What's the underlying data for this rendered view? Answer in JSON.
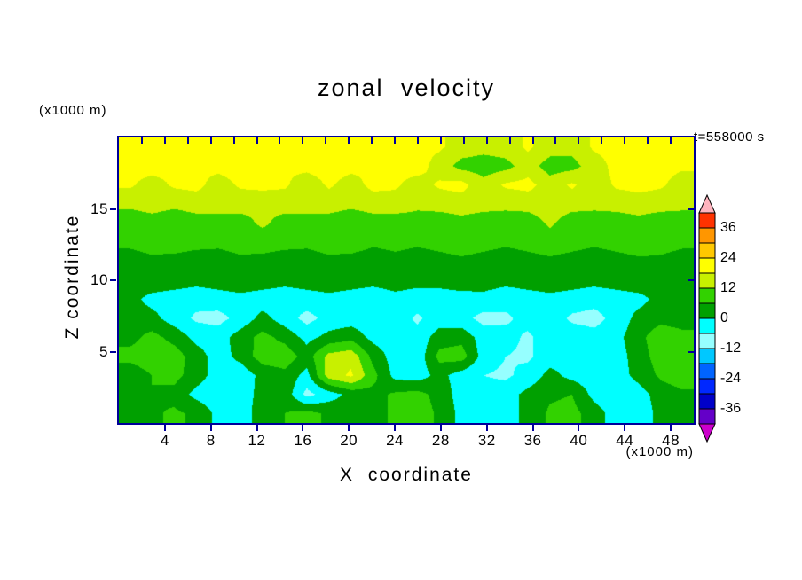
{
  "title": "zonal velocity",
  "timestamp_label": "t=558000 s",
  "axes": {
    "x_label": "X coordinate",
    "z_label": "Z coordinate",
    "x_unit": "(x1000 m)",
    "z_unit": "(x1000 m)",
    "x_ticks": [
      4,
      8,
      12,
      16,
      20,
      24,
      28,
      32,
      36,
      40,
      44,
      48
    ],
    "z_ticks": [
      5,
      10,
      15
    ],
    "frame_color": "#000099"
  },
  "colorbar": {
    "labels": [
      36,
      24,
      12,
      0,
      -12,
      -24,
      -36
    ],
    "label_interval": 12,
    "segment_interval": 6
  },
  "chart_data": {
    "type": "heatmap",
    "subtype": "filled-contour",
    "title": "zonal velocity",
    "xlabel": "X coordinate (x1000 m)",
    "ylabel": "Z coordinate (x1000 m)",
    "annotation": "t=558000 s",
    "xlim": [
      0,
      50
    ],
    "zlim": [
      0,
      20
    ],
    "contour_interval": 6,
    "levels": [
      -42,
      -36,
      -30,
      -24,
      -18,
      -12,
      -6,
      0,
      6,
      12,
      18,
      24,
      30,
      36,
      42
    ],
    "colors": [
      "#cc00cc",
      "#6400c8",
      "#0000c8",
      "#0028ff",
      "#0064ff",
      "#00c8ff",
      "#96ffff",
      "#00ffff",
      "#00a000",
      "#32d200",
      "#c8f000",
      "#ffff00",
      "#ffc800",
      "#ff9600",
      "#ff3200",
      "#ffb4be"
    ],
    "legend_position": "right",
    "grid_lines": false,
    "grid": {
      "nx": 26,
      "nz": 15,
      "order": "rows bottom-to-top, columns left-to-right",
      "values": [
        [
          4,
          5,
          7,
          5,
          -2,
          -3,
          3,
          6,
          8,
          5,
          3,
          2,
          8,
          9,
          5,
          -2,
          -4,
          -3,
          2,
          7,
          8,
          3,
          -3,
          -4,
          2,
          5
        ],
        [
          3,
          6,
          4,
          -2,
          -4,
          -3,
          2,
          4,
          -8,
          -3,
          2,
          4,
          7,
          8,
          4,
          -3,
          -4,
          -3,
          2,
          5,
          6,
          -2,
          -4,
          -3,
          3,
          5
        ],
        [
          2,
          6,
          8,
          3,
          -3,
          -4,
          2,
          4,
          -2,
          15,
          19,
          8,
          -2,
          -3,
          2,
          -3,
          -6,
          -7,
          -4,
          2,
          -2,
          -4,
          -3,
          2,
          7,
          9
        ],
        [
          8,
          10,
          9,
          3,
          -3,
          2,
          9,
          10,
          3,
          14,
          16,
          4,
          -3,
          -4,
          8,
          9,
          -3,
          -6,
          -7,
          -3,
          -2,
          -4,
          -3,
          3,
          9,
          11
        ],
        [
          4,
          8,
          4,
          -2,
          -3,
          3,
          8,
          4,
          -2,
          2,
          4,
          -2,
          -3,
          -4,
          3,
          4,
          -3,
          -4,
          -7,
          -3,
          -3,
          -4,
          -2,
          4,
          10,
          8
        ],
        [
          3,
          2,
          -3,
          -7,
          -8,
          -4,
          2,
          -3,
          -8,
          -4,
          -3,
          -4,
          -3,
          -7,
          -3,
          -4,
          -8,
          -7,
          -4,
          -3,
          -7,
          -8,
          -4,
          2,
          4,
          3
        ],
        [
          2,
          -2,
          -3,
          -4,
          -3,
          -2,
          -3,
          -4,
          -3,
          -2,
          -3,
          -4,
          -2,
          -3,
          -4,
          -3,
          -2,
          -4,
          -3,
          -2,
          -3,
          -4,
          -3,
          -2,
          2,
          3
        ],
        [
          3,
          4,
          3,
          2,
          3,
          4,
          3,
          2,
          3,
          4,
          3,
          2,
          3,
          2,
          3,
          4,
          3,
          2,
          3,
          4,
          3,
          2,
          3,
          4,
          4,
          3
        ],
        [
          4,
          5,
          4,
          3,
          4,
          5,
          4,
          3,
          4,
          5,
          4,
          3,
          4,
          3,
          4,
          5,
          4,
          3,
          4,
          5,
          4,
          3,
          4,
          5,
          5,
          4
        ],
        [
          7,
          8,
          9,
          8,
          7,
          8,
          9,
          8,
          7,
          8,
          9,
          7,
          8,
          7,
          8,
          9,
          8,
          7,
          8,
          9,
          8,
          7,
          8,
          9,
          8,
          7
        ],
        [
          9,
          10,
          9,
          10,
          9,
          10,
          13,
          10,
          9,
          10,
          9,
          10,
          9,
          10,
          9,
          10,
          9,
          10,
          9,
          13,
          9,
          10,
          9,
          10,
          9,
          10
        ],
        [
          13,
          14,
          13,
          14,
          15,
          14,
          13,
          14,
          15,
          14,
          13,
          14,
          15,
          13,
          14,
          15,
          14,
          13,
          14,
          15,
          14,
          13,
          14,
          15,
          14,
          13
        ],
        [
          19,
          15,
          19,
          20,
          15,
          19,
          20,
          19,
          14,
          19,
          15,
          20,
          19,
          15,
          19,
          20,
          14,
          19,
          20,
          15,
          19,
          14,
          19,
          20,
          19,
          15
        ],
        [
          20,
          21,
          20,
          19,
          20,
          21,
          20,
          19,
          20,
          21,
          20,
          19,
          20,
          21,
          15,
          10,
          9,
          10,
          15,
          9,
          10,
          15,
          20,
          21,
          20,
          19
        ],
        [
          21,
          22,
          21,
          20,
          21,
          22,
          21,
          20,
          21,
          22,
          21,
          20,
          21,
          20,
          19,
          15,
          14,
          15,
          19,
          15,
          14,
          19,
          20,
          21,
          20,
          21
        ]
      ]
    }
  }
}
